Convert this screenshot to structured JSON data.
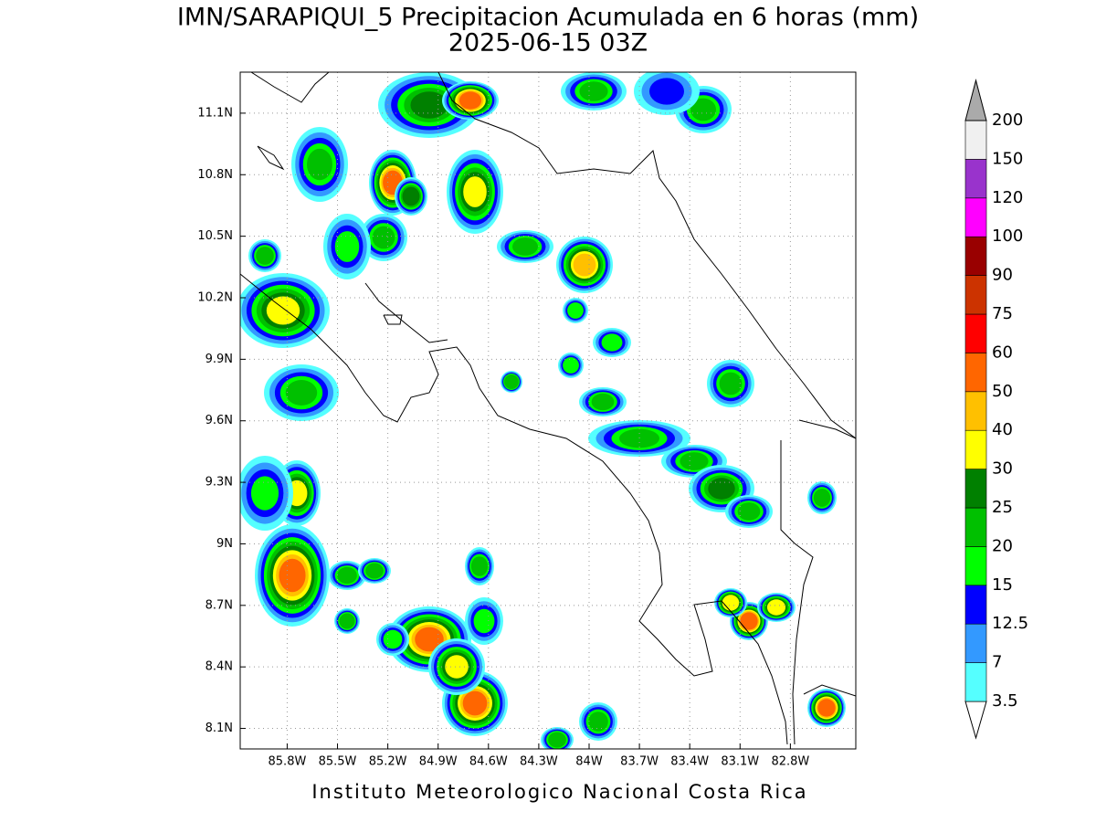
{
  "title": "IMN/SARAPIQUI_5 Precipitacion Acumulada en 6 horas (mm)",
  "subtitle": "2025-06-15 03Z",
  "footer": "Instituto Meteorologico Nacional Costa Rica",
  "map": {
    "lon_range": [
      -86.08,
      -82.41
    ],
    "lat_range": [
      8.0,
      11.3
    ],
    "grid": true,
    "lon_ticks": [
      {
        "value": -85.8,
        "label": "85.8W"
      },
      {
        "value": -85.5,
        "label": "85.5W"
      },
      {
        "value": -85.2,
        "label": "85.2W"
      },
      {
        "value": -84.9,
        "label": "84.9W"
      },
      {
        "value": -84.6,
        "label": "84.6W"
      },
      {
        "value": -84.3,
        "label": "84.3W"
      },
      {
        "value": -84.0,
        "label": "84W"
      },
      {
        "value": -83.7,
        "label": "83.7W"
      },
      {
        "value": -83.4,
        "label": "83.4W"
      },
      {
        "value": -83.1,
        "label": "83.1W"
      },
      {
        "value": -82.8,
        "label": "82.8W"
      }
    ],
    "lat_ticks": [
      {
        "value": 11.1,
        "label": "11.1N"
      },
      {
        "value": 10.8,
        "label": "10.8N"
      },
      {
        "value": 10.5,
        "label": "10.5N"
      },
      {
        "value": 10.2,
        "label": "10.2N"
      },
      {
        "value": 9.9,
        "label": "9.9N"
      },
      {
        "value": 9.6,
        "label": "9.6N"
      },
      {
        "value": 9.3,
        "label": "9.3N"
      },
      {
        "value": 9.0,
        "label": "9N"
      },
      {
        "value": 8.7,
        "label": "8.7N"
      },
      {
        "value": 8.4,
        "label": "8.4N"
      },
      {
        "value": 8.1,
        "label": "8.1N"
      }
    ]
  },
  "colorbar": {
    "levels": [
      3.5,
      7,
      12.5,
      15,
      20,
      25,
      30,
      40,
      50,
      60,
      75,
      90,
      100,
      120,
      150,
      200
    ],
    "colors": [
      "#ffffff",
      "#55ffff",
      "#3399ff",
      "#0000ff",
      "#00ff00",
      "#00c000",
      "#008000",
      "#ffff00",
      "#ffc000",
      "#ff6600",
      "#ff0000",
      "#cc3300",
      "#990000",
      "#ff00ff",
      "#9933cc",
      "#f0f0f0",
      "#aaaaaa"
    ]
  }
}
